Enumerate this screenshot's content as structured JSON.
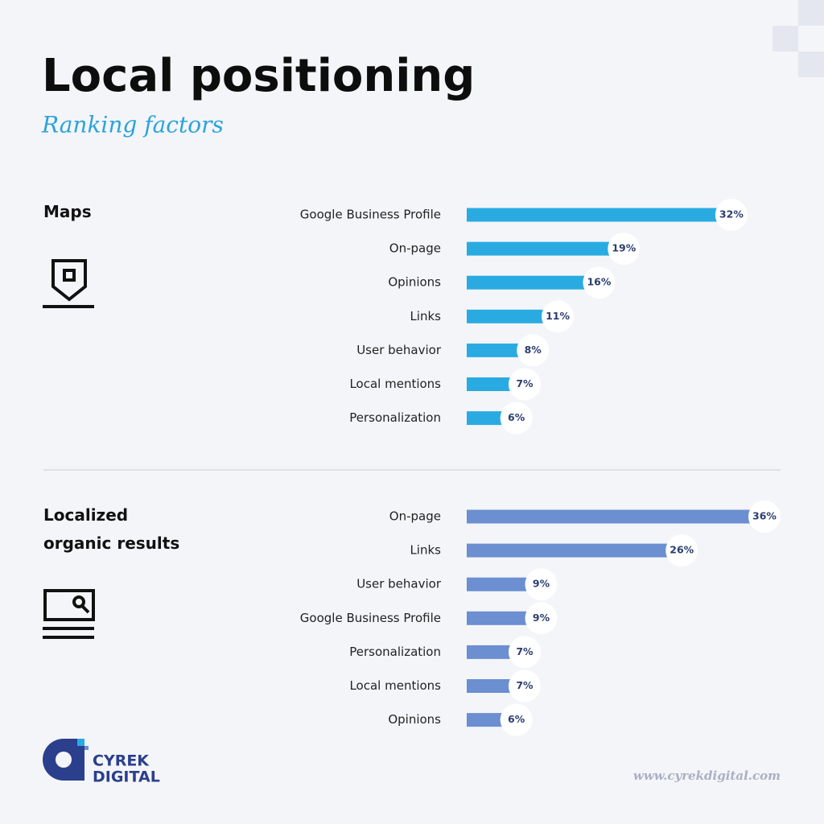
{
  "header": {
    "title": "Local positioning",
    "subtitle": "Ranking factors"
  },
  "chart_data": [
    {
      "type": "bar",
      "orientation": "horizontal",
      "title": "Maps",
      "color": "#29abe2",
      "categories": [
        "Google Business Profile",
        "On-page",
        "Opinions",
        "Links",
        "User behavior",
        "Local mentions",
        "Personalization"
      ],
      "values": [
        32,
        19,
        16,
        11,
        8,
        7,
        6
      ],
      "value_labels": [
        "32%",
        "19%",
        "16%",
        "11%",
        "8%",
        "7%",
        "6%"
      ]
    },
    {
      "type": "bar",
      "orientation": "horizontal",
      "title": "Localized organic results",
      "color": "#6b8fd0",
      "categories": [
        "On-page",
        "Links",
        "User behavior",
        "Google Business Profile",
        "Personalization",
        "Local mentions",
        "Opinions"
      ],
      "values": [
        36,
        26,
        9,
        9,
        7,
        7,
        6
      ],
      "value_labels": [
        "36%",
        "26%",
        "9%",
        "9%",
        "7%",
        "7%",
        "6%"
      ]
    }
  ],
  "footer": {
    "brand": [
      "CYREK",
      "DIGITAL"
    ],
    "url": "www.cyrekdigital.com"
  }
}
